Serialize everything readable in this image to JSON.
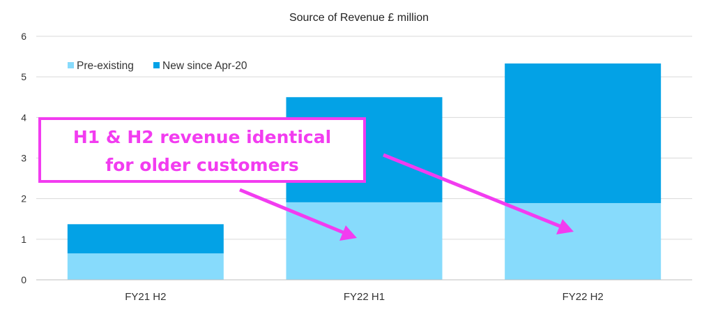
{
  "chart_data": {
    "type": "bar",
    "stacked": true,
    "title": "Source of Revenue £ million",
    "categories": [
      "FY21 H2",
      "FY22 H1",
      "FY22 H2"
    ],
    "series": [
      {
        "name": "Pre-existing",
        "color": "#87dbfc",
        "values": [
          0.65,
          1.91,
          1.89
        ]
      },
      {
        "name": "New since Apr-20",
        "color": "#03a2e6",
        "values": [
          0.72,
          2.59,
          3.44
        ]
      }
    ],
    "ylim": [
      0,
      6
    ],
    "yticks": [
      "0",
      "1",
      "2",
      "3",
      "4",
      "5",
      "6"
    ],
    "legend": "top-left",
    "grid": true,
    "annotation": {
      "lines": [
        "H1 & H2 revenue identical",
        "for older customers"
      ],
      "color": "#f23cf0"
    }
  }
}
